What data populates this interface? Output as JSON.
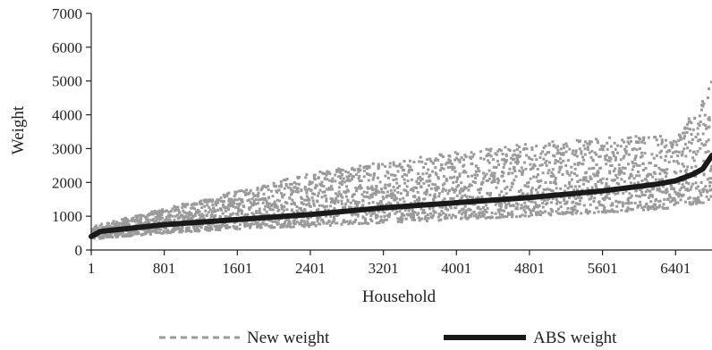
{
  "chart_data": {
    "type": "scatter",
    "xlabel": "Household",
    "ylabel": "Weight",
    "xlim": [
      1,
      6800
    ],
    "ylim": [
      0,
      7000
    ],
    "x_ticks": [
      1,
      801,
      1601,
      2401,
      3201,
      4001,
      4801,
      5601,
      6401
    ],
    "y_ticks": [
      0,
      1000,
      2000,
      3000,
      4000,
      5000,
      6000,
      7000
    ],
    "grid": false,
    "legend_position": "bottom",
    "series": [
      {
        "name": "New weight",
        "kind": "scatter",
        "color": "#9a9a9a",
        "band": {
          "x": [
            1,
            801,
            1601,
            2401,
            3201,
            4001,
            4801,
            5601,
            6401,
            6700,
            6800
          ],
          "low": [
            320,
            500,
            620,
            700,
            800,
            900,
            1000,
            1100,
            1250,
            1400,
            1600
          ],
          "high": [
            700,
            1250,
            1750,
            2300,
            2600,
            2900,
            3150,
            3350,
            3400,
            4500,
            5400
          ]
        }
      },
      {
        "name": "ABS weight",
        "kind": "line",
        "color": "#1a1a1a",
        "x": [
          1,
          100,
          801,
          1601,
          2401,
          3201,
          4001,
          4801,
          5601,
          6201,
          6401,
          6600,
          6700,
          6750,
          6800
        ],
        "y": [
          400,
          550,
          750,
          900,
          1050,
          1250,
          1400,
          1550,
          1750,
          1950,
          2050,
          2250,
          2400,
          2600,
          2800
        ]
      }
    ]
  }
}
